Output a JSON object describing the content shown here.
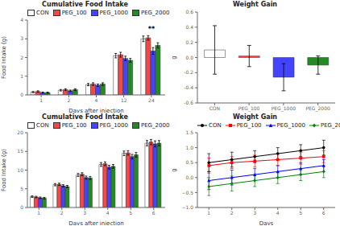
{
  "chart_data": [
    {
      "type": "bar",
      "title": "Cumulative Food Intake",
      "xlabel": "Days after injection",
      "ylabel": "Food Intake (g)",
      "categories": [
        1,
        2,
        4,
        12,
        24
      ],
      "series": [
        {
          "name": "CON",
          "color": "#ffffff",
          "values": [
            0.15,
            0.25,
            0.55,
            2.1,
            3.0
          ],
          "errors": [
            0.03,
            0.04,
            0.06,
            0.12,
            0.15
          ]
        },
        {
          "name": "PEG_100",
          "color": "#ff4444",
          "values": [
            0.18,
            0.28,
            0.58,
            2.15,
            3.05
          ],
          "errors": [
            0.04,
            0.05,
            0.07,
            0.13,
            0.12
          ]
        },
        {
          "name": "PEG_1000",
          "color": "#4444ff",
          "values": [
            0.12,
            0.22,
            0.52,
            1.95,
            2.35
          ],
          "errors": [
            0.03,
            0.04,
            0.06,
            0.12,
            0.18
          ]
        },
        {
          "name": "PEG_2000",
          "color": "#228B22",
          "values": [
            0.12,
            0.28,
            0.58,
            1.85,
            2.65
          ],
          "errors": [
            0.03,
            0.05,
            0.07,
            0.1,
            0.14
          ]
        }
      ],
      "ylim": [
        0,
        4
      ],
      "yticks": [
        0,
        1,
        2,
        3,
        4
      ],
      "legend": "upper left",
      "grid": false,
      "annotations": [
        {
          "text": "**",
          "category": 24
        }
      ]
    },
    {
      "type": "bar",
      "title": "Weight Gain",
      "ylabel": "g",
      "categories": [
        "CON",
        "PEG_100",
        "PEG_1000",
        "PEG_2000"
      ],
      "values": [
        0.1,
        0.02,
        -0.26,
        -0.1
      ],
      "errors": [
        0.32,
        0.14,
        0.18,
        0.12
      ],
      "colors": [
        "#ffffff",
        "#ff4444",
        "#4444ff",
        "#228B22"
      ],
      "ylim": [
        -0.6,
        0.6
      ],
      "yticks": [
        -0.6,
        -0.4,
        -0.2,
        {
          "value": 0,
          "label": "0.0"
        },
        0.2,
        0.4,
        0.6
      ],
      "grid": false
    },
    {
      "type": "bar",
      "title": "Cumulative Food Intake",
      "xlabel": "Days after injection",
      "ylabel": "Food Intake (g)",
      "categories": [
        1,
        2,
        3,
        4,
        5,
        6
      ],
      "series": [
        {
          "name": "CON",
          "color": "#ffffff",
          "values": [
            2.9,
            6.1,
            8.7,
            11.5,
            14.5,
            17.2
          ],
          "errors": [
            0.2,
            0.3,
            0.4,
            0.5,
            0.6,
            0.7
          ]
        },
        {
          "name": "PEG_100",
          "color": "#ff4444",
          "values": [
            2.8,
            6.2,
            8.9,
            11.7,
            14.6,
            17.5
          ],
          "errors": [
            0.2,
            0.3,
            0.4,
            0.5,
            0.6,
            0.7
          ]
        },
        {
          "name": "PEG_1000",
          "color": "#4444ff",
          "values": [
            2.6,
            5.8,
            8.0,
            10.8,
            13.6,
            17.0
          ],
          "errors": [
            0.2,
            0.3,
            0.4,
            0.5,
            0.6,
            0.8
          ]
        },
        {
          "name": "PEG_2000",
          "color": "#228B22",
          "values": [
            2.5,
            5.6,
            7.9,
            11.0,
            14.1,
            17.2
          ],
          "errors": [
            0.2,
            0.3,
            0.4,
            0.5,
            0.6,
            0.7
          ]
        }
      ],
      "ylim": [
        0,
        20
      ],
      "yticks": [
        0,
        5,
        10,
        15,
        20
      ],
      "legend": "upper left",
      "grid": false
    },
    {
      "type": "line",
      "title": "Weight Gain",
      "xlabel": "Days",
      "ylabel": "g",
      "x": [
        1,
        2,
        3,
        4,
        5,
        6
      ],
      "series": [
        {
          "name": "CON",
          "color": "black",
          "marker": "circle",
          "values": [
            0.5,
            0.6,
            0.7,
            0.8,
            0.9,
            1.0
          ],
          "errors": [
            0.3,
            0.25,
            0.2,
            0.2,
            0.2,
            0.25
          ]
        },
        {
          "name": "PEG_100",
          "color": "red",
          "marker": "square",
          "values": [
            0.4,
            0.5,
            0.55,
            0.6,
            0.65,
            0.7
          ],
          "errors": [
            0.25,
            0.2,
            0.2,
            0.2,
            0.2,
            0.2
          ]
        },
        {
          "name": "PEG_1000",
          "color": "blue",
          "marker": "triangle",
          "values": [
            -0.1,
            0.0,
            0.1,
            0.2,
            0.3,
            0.4
          ],
          "errors": [
            0.3,
            0.25,
            0.2,
            0.2,
            0.2,
            0.2
          ]
        },
        {
          "name": "PEG_2000",
          "color": "green",
          "marker": "diamond",
          "values": [
            -0.3,
            -0.2,
            -0.1,
            0.0,
            0.1,
            0.2
          ],
          "errors": [
            0.3,
            0.25,
            0.2,
            0.2,
            0.2,
            0.2
          ]
        }
      ],
      "xlim": [
        0.5,
        6.5
      ],
      "xticks": [
        1,
        2,
        3,
        4,
        5,
        6
      ],
      "ylim": [
        -1.0,
        1.5
      ],
      "yticks": [
        {
          "value": -1.0,
          "label": "−1.0"
        },
        {
          "value": -0.5,
          "label": "−0.5"
        },
        {
          "value": 0,
          "label": "0.0"
        },
        {
          "value": 0.5,
          "label": "0.5"
        },
        {
          "value": 1.0,
          "label": "1.0"
        },
        {
          "value": 1.5,
          "label": "1.5"
        }
      ],
      "legend": "upper left",
      "grid": false
    }
  ]
}
